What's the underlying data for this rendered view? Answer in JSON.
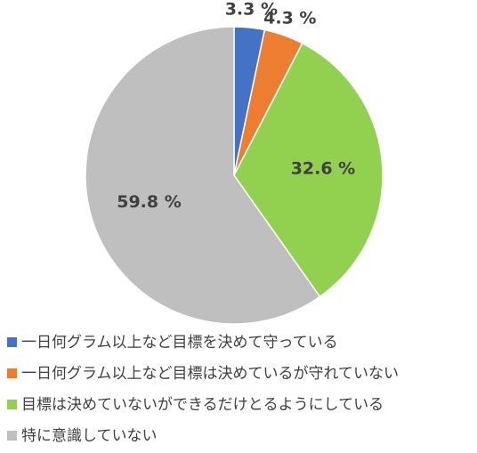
{
  "chart_data": {
    "type": "pie",
    "categories": [
      "一日何グラム以上など目標を決めて守っている",
      "一日何グラム以上など目標は決めているが守れていない",
      "目標は決めていないができるだけとるようにしている",
      "特に意識していない"
    ],
    "values": [
      3.3,
      4.3,
      32.6,
      59.8
    ],
    "value_labels": [
      "3.3 %",
      "4.3 %",
      "32.6 %",
      "59.8 %"
    ],
    "colors": [
      "#4472c4",
      "#ed7d31",
      "#92d050",
      "#bfbfbf"
    ],
    "legend": "bottom"
  }
}
